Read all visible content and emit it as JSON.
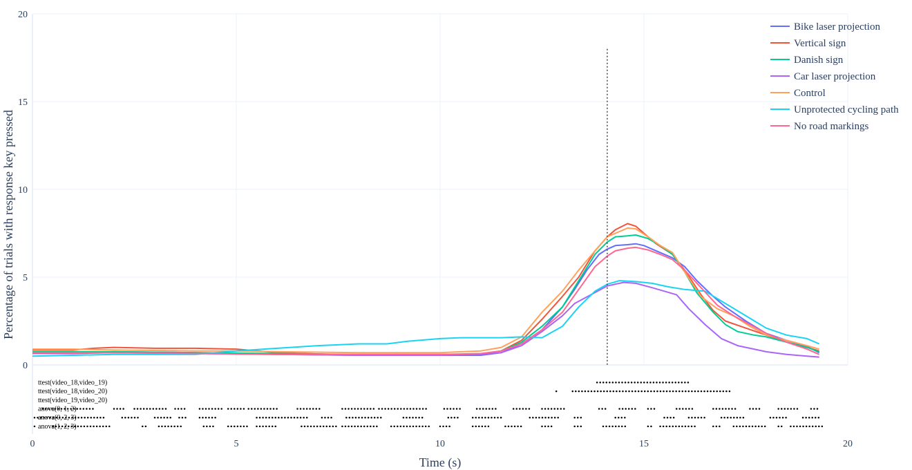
{
  "chart_data": {
    "type": "line",
    "xlabel": "Time (s)",
    "ylabel": "Percentage of trials with response key pressed",
    "xlim": [
      0,
      20
    ],
    "ylim": [
      0,
      20
    ],
    "x_ticks": [
      0,
      5,
      10,
      15,
      20
    ],
    "y_ticks": [
      0,
      5,
      10,
      15,
      20
    ],
    "grid": true,
    "legend_position": "top-right",
    "vertical_marker": {
      "x": 14.1,
      "y_top": 18,
      "style": "dotted"
    },
    "series": [
      {
        "name": "Bike laser projection",
        "color": "#636efa",
        "points": [
          [
            0,
            0.7
          ],
          [
            1,
            0.7
          ],
          [
            2,
            0.75
          ],
          [
            4,
            0.7
          ],
          [
            6,
            0.6
          ],
          [
            8,
            0.55
          ],
          [
            10,
            0.55
          ],
          [
            11,
            0.55
          ],
          [
            11.5,
            0.7
          ],
          [
            12,
            1.2
          ],
          [
            12.5,
            2.0
          ],
          [
            13,
            3.3
          ],
          [
            13.3,
            4.3
          ],
          [
            13.6,
            5.4
          ],
          [
            13.9,
            6.3
          ],
          [
            14.1,
            6.6
          ],
          [
            14.3,
            6.8
          ],
          [
            14.6,
            6.85
          ],
          [
            14.8,
            6.9
          ],
          [
            15,
            6.8
          ],
          [
            15.3,
            6.5
          ],
          [
            15.7,
            6.1
          ],
          [
            16,
            5.6
          ],
          [
            16.3,
            4.8
          ],
          [
            16.7,
            3.9
          ],
          [
            17,
            3.3
          ],
          [
            17.5,
            2.5
          ],
          [
            18,
            1.8
          ],
          [
            18.5,
            1.4
          ],
          [
            19,
            1.05
          ],
          [
            19.3,
            0.7
          ]
        ]
      },
      {
        "name": "Vertical sign",
        "color": "#ef553b",
        "points": [
          [
            0,
            0.85
          ],
          [
            1,
            0.85
          ],
          [
            1.5,
            0.95
          ],
          [
            2,
            1.0
          ],
          [
            3,
            0.95
          ],
          [
            4,
            0.95
          ],
          [
            5,
            0.9
          ],
          [
            6,
            0.7
          ],
          [
            8,
            0.55
          ],
          [
            10,
            0.55
          ],
          [
            11,
            0.6
          ],
          [
            11.5,
            0.8
          ],
          [
            12,
            1.4
          ],
          [
            12.5,
            2.6
          ],
          [
            13,
            3.9
          ],
          [
            13.4,
            5.0
          ],
          [
            13.8,
            6.5
          ],
          [
            14.1,
            7.3
          ],
          [
            14.3,
            7.7
          ],
          [
            14.6,
            8.05
          ],
          [
            14.8,
            7.9
          ],
          [
            15,
            7.5
          ],
          [
            15.3,
            6.9
          ],
          [
            15.7,
            6.3
          ],
          [
            16,
            5.4
          ],
          [
            16.4,
            4.0
          ],
          [
            16.7,
            3.1
          ],
          [
            17,
            2.5
          ],
          [
            17.5,
            2.1
          ],
          [
            18,
            1.7
          ],
          [
            18.5,
            1.3
          ],
          [
            19,
            1.0
          ],
          [
            19.3,
            0.8
          ]
        ]
      },
      {
        "name": "Danish sign",
        "color": "#00cc96",
        "points": [
          [
            0,
            0.75
          ],
          [
            1,
            0.75
          ],
          [
            2,
            0.75
          ],
          [
            4,
            0.7
          ],
          [
            6,
            0.65
          ],
          [
            8,
            0.6
          ],
          [
            10,
            0.6
          ],
          [
            11,
            0.6
          ],
          [
            11.5,
            0.8
          ],
          [
            12,
            1.3
          ],
          [
            12.5,
            2.2
          ],
          [
            13,
            3.3
          ],
          [
            13.4,
            4.8
          ],
          [
            13.8,
            6.3
          ],
          [
            14.1,
            7.0
          ],
          [
            14.3,
            7.3
          ],
          [
            14.6,
            7.35
          ],
          [
            14.8,
            7.4
          ],
          [
            15.1,
            7.2
          ],
          [
            15.4,
            6.8
          ],
          [
            15.7,
            6.3
          ],
          [
            16,
            5.3
          ],
          [
            16.3,
            4.1
          ],
          [
            16.7,
            3.0
          ],
          [
            17,
            2.3
          ],
          [
            17.3,
            1.9
          ],
          [
            17.7,
            1.7
          ],
          [
            18,
            1.6
          ],
          [
            18.5,
            1.3
          ],
          [
            19,
            1.0
          ],
          [
            19.3,
            0.75
          ]
        ]
      },
      {
        "name": "Car laser projection",
        "color": "#ab63fa",
        "points": [
          [
            0,
            0.65
          ],
          [
            1,
            0.65
          ],
          [
            2,
            0.7
          ],
          [
            4,
            0.65
          ],
          [
            6,
            0.6
          ],
          [
            8,
            0.55
          ],
          [
            10,
            0.55
          ],
          [
            11,
            0.6
          ],
          [
            11.5,
            0.7
          ],
          [
            12,
            1.1
          ],
          [
            12.5,
            1.9
          ],
          [
            13,
            2.8
          ],
          [
            13.3,
            3.5
          ],
          [
            13.7,
            4.0
          ],
          [
            14.1,
            4.5
          ],
          [
            14.5,
            4.7
          ],
          [
            14.8,
            4.65
          ],
          [
            15.2,
            4.4
          ],
          [
            15.5,
            4.2
          ],
          [
            15.8,
            4.0
          ],
          [
            16.1,
            3.2
          ],
          [
            16.5,
            2.3
          ],
          [
            16.9,
            1.5
          ],
          [
            17.3,
            1.1
          ],
          [
            17.7,
            0.9
          ],
          [
            18,
            0.75
          ],
          [
            18.5,
            0.6
          ],
          [
            19,
            0.5
          ],
          [
            19.3,
            0.45
          ]
        ]
      },
      {
        "name": "Control",
        "color": "#ffa15a",
        "points": [
          [
            0,
            0.9
          ],
          [
            1,
            0.9
          ],
          [
            2,
            0.85
          ],
          [
            4,
            0.8
          ],
          [
            5,
            0.8
          ],
          [
            6,
            0.75
          ],
          [
            8,
            0.7
          ],
          [
            10,
            0.7
          ],
          [
            11,
            0.8
          ],
          [
            11.5,
            1.0
          ],
          [
            12,
            1.6
          ],
          [
            12.5,
            3.0
          ],
          [
            13,
            4.2
          ],
          [
            13.4,
            5.4
          ],
          [
            13.8,
            6.5
          ],
          [
            14.1,
            7.3
          ],
          [
            14.4,
            7.6
          ],
          [
            14.6,
            7.8
          ],
          [
            14.8,
            7.75
          ],
          [
            15.1,
            7.3
          ],
          [
            15.4,
            6.8
          ],
          [
            15.7,
            6.4
          ],
          [
            16,
            5.3
          ],
          [
            16.4,
            3.9
          ],
          [
            16.8,
            3.2
          ],
          [
            17.2,
            2.8
          ],
          [
            17.6,
            2.2
          ],
          [
            18,
            1.7
          ],
          [
            18.5,
            1.4
          ],
          [
            19,
            1.1
          ],
          [
            19.3,
            0.9
          ]
        ]
      },
      {
        "name": "Unprotected cycling path",
        "color": "#19d3f3",
        "points": [
          [
            0,
            0.5
          ],
          [
            1,
            0.55
          ],
          [
            2,
            0.6
          ],
          [
            4,
            0.6
          ],
          [
            5,
            0.8
          ],
          [
            6,
            0.95
          ],
          [
            7,
            1.1
          ],
          [
            8,
            1.2
          ],
          [
            8.7,
            1.2
          ],
          [
            9.2,
            1.35
          ],
          [
            10,
            1.5
          ],
          [
            10.5,
            1.55
          ],
          [
            11,
            1.55
          ],
          [
            11.5,
            1.55
          ],
          [
            12,
            1.6
          ],
          [
            12.5,
            1.55
          ],
          [
            13,
            2.2
          ],
          [
            13.4,
            3.3
          ],
          [
            13.8,
            4.2
          ],
          [
            14.1,
            4.6
          ],
          [
            14.4,
            4.8
          ],
          [
            14.8,
            4.75
          ],
          [
            15.2,
            4.65
          ],
          [
            15.6,
            4.45
          ],
          [
            16,
            4.3
          ],
          [
            16.5,
            4.2
          ],
          [
            17,
            3.5
          ],
          [
            17.5,
            2.8
          ],
          [
            18,
            2.1
          ],
          [
            18.5,
            1.7
          ],
          [
            19,
            1.5
          ],
          [
            19.3,
            1.2
          ]
        ]
      },
      {
        "name": "No road markings",
        "color": "#ff6692",
        "points": [
          [
            0,
            0.7
          ],
          [
            1,
            0.7
          ],
          [
            2,
            0.7
          ],
          [
            4,
            0.65
          ],
          [
            6,
            0.6
          ],
          [
            8,
            0.6
          ],
          [
            10,
            0.6
          ],
          [
            11,
            0.65
          ],
          [
            11.5,
            0.8
          ],
          [
            12,
            1.2
          ],
          [
            12.5,
            2.0
          ],
          [
            13,
            3.0
          ],
          [
            13.4,
            4.3
          ],
          [
            13.8,
            5.6
          ],
          [
            14.1,
            6.2
          ],
          [
            14.3,
            6.5
          ],
          [
            14.6,
            6.65
          ],
          [
            14.8,
            6.7
          ],
          [
            15.1,
            6.55
          ],
          [
            15.4,
            6.3
          ],
          [
            15.7,
            6.0
          ],
          [
            16,
            5.4
          ],
          [
            16.4,
            4.4
          ],
          [
            16.8,
            3.4
          ],
          [
            17.2,
            2.8
          ],
          [
            17.6,
            2.3
          ],
          [
            18,
            1.8
          ],
          [
            18.5,
            1.3
          ],
          [
            19,
            0.9
          ],
          [
            19.3,
            0.6
          ]
        ]
      }
    ],
    "significance_rows": [
      {
        "label": "ttest(video_18,video_19)",
        "y": -1.0,
        "ranges": [
          [
            13.85,
            16.15
          ]
        ]
      },
      {
        "label": "ttest(video_18,video_20)",
        "y": -1.5,
        "points": [
          12.85
        ],
        "ranges": [
          [
            13.25,
            17.15
          ]
        ]
      },
      {
        "label": "ttest(video_19,video_20)",
        "y": -2.0,
        "ranges": []
      },
      {
        "label": "anova(0, 1, 2)",
        "y": -2.5,
        "ranges": [
          [
            0.25,
            1.5
          ],
          [
            2,
            2.3
          ],
          [
            2.5,
            3.3
          ],
          [
            3.5,
            3.8
          ],
          [
            4.1,
            4.7
          ],
          [
            4.8,
            5.2
          ],
          [
            5.3,
            6
          ],
          [
            6.5,
            7.1
          ],
          [
            7.6,
            8.4
          ],
          [
            8.5,
            9.7
          ],
          [
            10.1,
            10.5
          ],
          [
            10.9,
            11.4
          ],
          [
            11.8,
            12.2
          ],
          [
            12.5,
            13.1
          ],
          [
            13.9,
            14.1
          ],
          [
            14.4,
            14.8
          ],
          [
            15.1,
            15.3
          ],
          [
            15.8,
            16.2
          ],
          [
            16.7,
            17.3
          ],
          [
            17.6,
            17.9
          ],
          [
            18.3,
            18.8
          ],
          [
            19.1,
            19.3
          ]
        ]
      },
      {
        "label": "anova(0, 2, 3)",
        "y": -3.0,
        "ranges": [
          [
            0.05,
            1.8
          ],
          [
            2.2,
            2.6
          ],
          [
            3,
            3.4
          ],
          [
            3.6,
            3.8
          ],
          [
            4.1,
            4.5
          ],
          [
            5.5,
            6.8
          ],
          [
            7.1,
            7.4
          ],
          [
            7.7,
            8.6
          ],
          [
            9.1,
            9.6
          ],
          [
            10.2,
            10.5
          ],
          [
            10.8,
            11.5
          ],
          [
            12.2,
            12.9
          ],
          [
            13.3,
            13.5
          ],
          [
            14.3,
            14.6
          ],
          [
            15.5,
            15.8
          ],
          [
            16.1,
            16.5
          ],
          [
            16.9,
            17.5
          ],
          [
            18.1,
            18.5
          ],
          [
            18.9,
            19.3
          ]
        ]
      },
      {
        "label": "anova(1, 2, 3)",
        "y": -3.5,
        "ranges": [
          [
            0.05,
            0.1
          ],
          [
            0.5,
            1.9
          ],
          [
            2.7,
            2.8
          ],
          [
            3.1,
            3.7
          ],
          [
            4.2,
            4.5
          ],
          [
            4.8,
            5.3
          ],
          [
            5.5,
            6
          ],
          [
            6.6,
            7.5
          ],
          [
            7.6,
            8.5
          ],
          [
            8.8,
            9.8
          ],
          [
            10,
            10.3
          ],
          [
            10.8,
            11.2
          ],
          [
            11.6,
            12
          ],
          [
            12.5,
            12.8
          ],
          [
            13.3,
            13.5
          ],
          [
            14,
            14.6
          ],
          [
            15.1,
            15.2
          ],
          [
            15.4,
            16.3
          ],
          [
            16.7,
            16.9
          ],
          [
            17.2,
            18
          ],
          [
            18.3,
            18.4
          ],
          [
            18.6,
            19.4
          ]
        ]
      }
    ]
  }
}
